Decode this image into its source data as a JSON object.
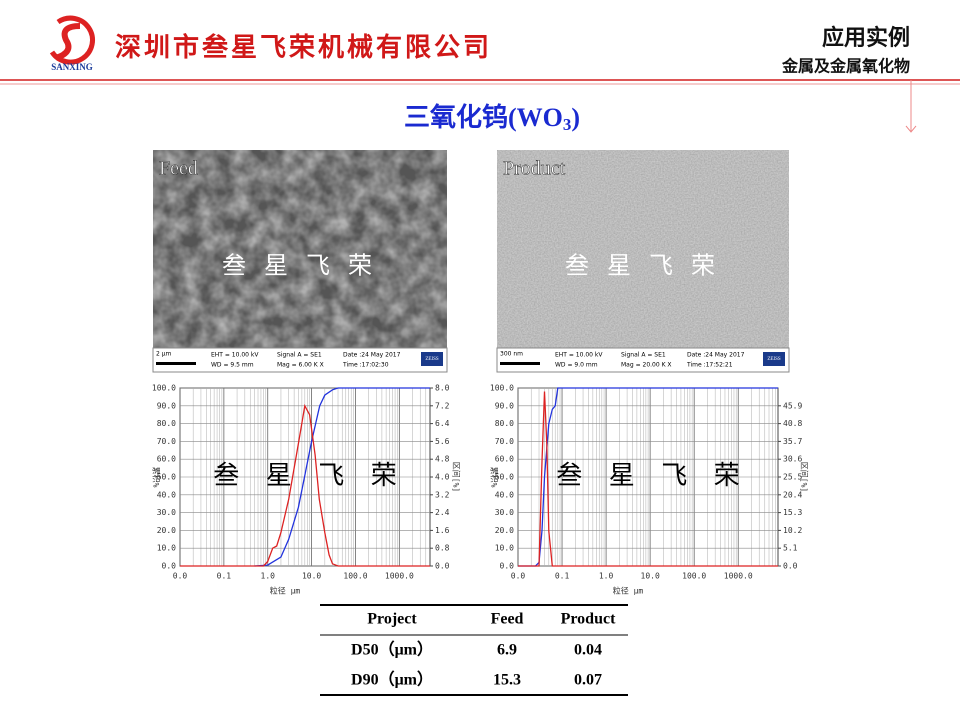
{
  "header": {
    "logo_text": "SANXING",
    "company": "深圳市叁星飞荣机械有限公司",
    "title": "应用实例",
    "subtitle": "金属及金属氧化物"
  },
  "slide_title": {
    "main": "三氧化钨(WO",
    "sub": "3",
    "end": ")"
  },
  "watermark": "叁 星 飞 荣",
  "images": [
    {
      "label": "Feed",
      "scale": "2 µm",
      "info": [
        "EHT = 10.00 kV",
        "WD = 9.5 mm",
        "Signal A = SE1",
        "Mag = 6.00 K X",
        "Date :24 May 2017",
        "Time :17:02:30"
      ],
      "brand": "ZEISS"
    },
    {
      "label": "Product",
      "scale": "300 nm",
      "info": [
        "EHT = 10.00 kV",
        "WD = 9.0 mm",
        "Signal A = SE1",
        "Mag = 20.00 K X",
        "Date :24 May 2017",
        "Time :17:52:21"
      ],
      "brand": "ZEISS"
    }
  ],
  "charts": [
    {
      "type": "line",
      "log_x": true,
      "grid": true,
      "x_label": "粒径 μm",
      "y_label": "累积%",
      "y2_label": "区间[%]",
      "xlim": [
        0.01,
        5000
      ],
      "xticks": [
        {
          "value": 0.01,
          "label": "0.0"
        },
        0.1,
        {
          "value": 1,
          "label": "1.0"
        },
        {
          "value": 10,
          "label": "10.0"
        },
        {
          "value": 100,
          "label": "100.0"
        },
        {
          "value": 1000,
          "label": "1000.0"
        }
      ],
      "ylim": [
        0,
        100
      ],
      "yticks": [
        {
          "value": 0,
          "label": "0.0"
        },
        {
          "value": 10,
          "label": "10.0"
        },
        {
          "value": 20,
          "label": "20.0"
        },
        {
          "value": 30,
          "label": "30.0"
        },
        {
          "value": 40,
          "label": "40.0"
        },
        {
          "value": 50,
          "label": "50.0"
        },
        {
          "value": 60,
          "label": "60.0"
        },
        {
          "value": 70,
          "label": "70.0"
        },
        {
          "value": 80,
          "label": "80.0"
        },
        {
          "value": 90,
          "label": "90.0"
        },
        {
          "value": 100,
          "label": "100.0"
        }
      ],
      "y2lim": [
        0,
        8
      ],
      "y2ticks": [
        {
          "value": 0,
          "label": "0.0"
        },
        0.8,
        1.6,
        2.4,
        3.2,
        {
          "value": 4,
          "label": "4.0"
        },
        4.8,
        5.6,
        6.4,
        7.2,
        {
          "value": 8,
          "label": "8.0"
        }
      ],
      "series": [
        {
          "color": "#2233dd",
          "x": [
            0.5,
            1,
            2,
            3,
            5,
            6.9,
            10,
            15.3,
            20,
            30,
            40,
            100,
            5000
          ],
          "values": [
            0,
            0.5,
            5,
            15,
            33,
            50,
            70,
            90,
            96,
            99,
            100,
            100,
            100
          ]
        },
        {
          "color": "#dd2222",
          "axis": "y2",
          "x": [
            0.01,
            0.8,
            1,
            1.3,
            1.6,
            2,
            3,
            5,
            7,
            9,
            12,
            15,
            20,
            25,
            30,
            40,
            5000
          ],
          "values": [
            0,
            0,
            0.2,
            0.8,
            0.9,
            1.5,
            3,
            5.5,
            7.2,
            6.8,
            5,
            3,
            1.5,
            0.5,
            0.1,
            0,
            0
          ]
        }
      ]
    },
    {
      "type": "line",
      "log_x": true,
      "grid": true,
      "x_label": "粒径 μm",
      "y_label": "累积%",
      "y2_label": "区间[%]",
      "xlim": [
        0.01,
        8000
      ],
      "xticks": [
        {
          "value": 0.01,
          "label": "0.0"
        },
        0.1,
        {
          "value": 1,
          "label": "1.0"
        },
        {
          "value": 10,
          "label": "10.0"
        },
        {
          "value": 100,
          "label": "100.0"
        },
        {
          "value": 1000,
          "label": "1000.0"
        }
      ],
      "ylim": [
        0,
        100
      ],
      "yticks": [
        {
          "value": 0,
          "label": "0.0"
        },
        {
          "value": 10,
          "label": "10.0"
        },
        {
          "value": 20,
          "label": "20.0"
        },
        {
          "value": 30,
          "label": "30.0"
        },
        {
          "value": 40,
          "label": "40.0"
        },
        {
          "value": 50,
          "label": "50.0"
        },
        {
          "value": 60,
          "label": "60.0"
        },
        {
          "value": 70,
          "label": "70.0"
        },
        {
          "value": 80,
          "label": "80.0"
        },
        {
          "value": 90,
          "label": "90.0"
        },
        {
          "value": 100,
          "label": "100.0"
        }
      ],
      "y2lim": [
        0,
        51
      ],
      "y2ticks": [
        {
          "value": 0,
          "label": "0.0"
        },
        5.1,
        10.2,
        15.3,
        20.4,
        25.5,
        30.6,
        35.7,
        40.8,
        45.9
      ],
      "series": [
        {
          "color": "#2233dd",
          "x": [
            0.01,
            0.025,
            0.03,
            0.035,
            0.04,
            0.05,
            0.06,
            0.07,
            0.08,
            8000
          ],
          "values": [
            0,
            0,
            2,
            20,
            50,
            80,
            88,
            90,
            100,
            100
          ]
        },
        {
          "color": "#dd2222",
          "axis": "y2",
          "x": [
            0.01,
            0.03,
            0.035,
            0.04,
            0.045,
            0.05,
            0.06,
            8000
          ],
          "values": [
            0,
            0,
            30,
            50,
            35,
            10,
            0,
            0
          ]
        }
      ]
    }
  ],
  "table": {
    "header": [
      "Project",
      "Feed",
      "Product"
    ],
    "rows": [
      [
        "D50（μm）",
        6.9,
        0.04
      ],
      [
        "D90（μm）",
        15.3,
        0.07
      ]
    ]
  }
}
